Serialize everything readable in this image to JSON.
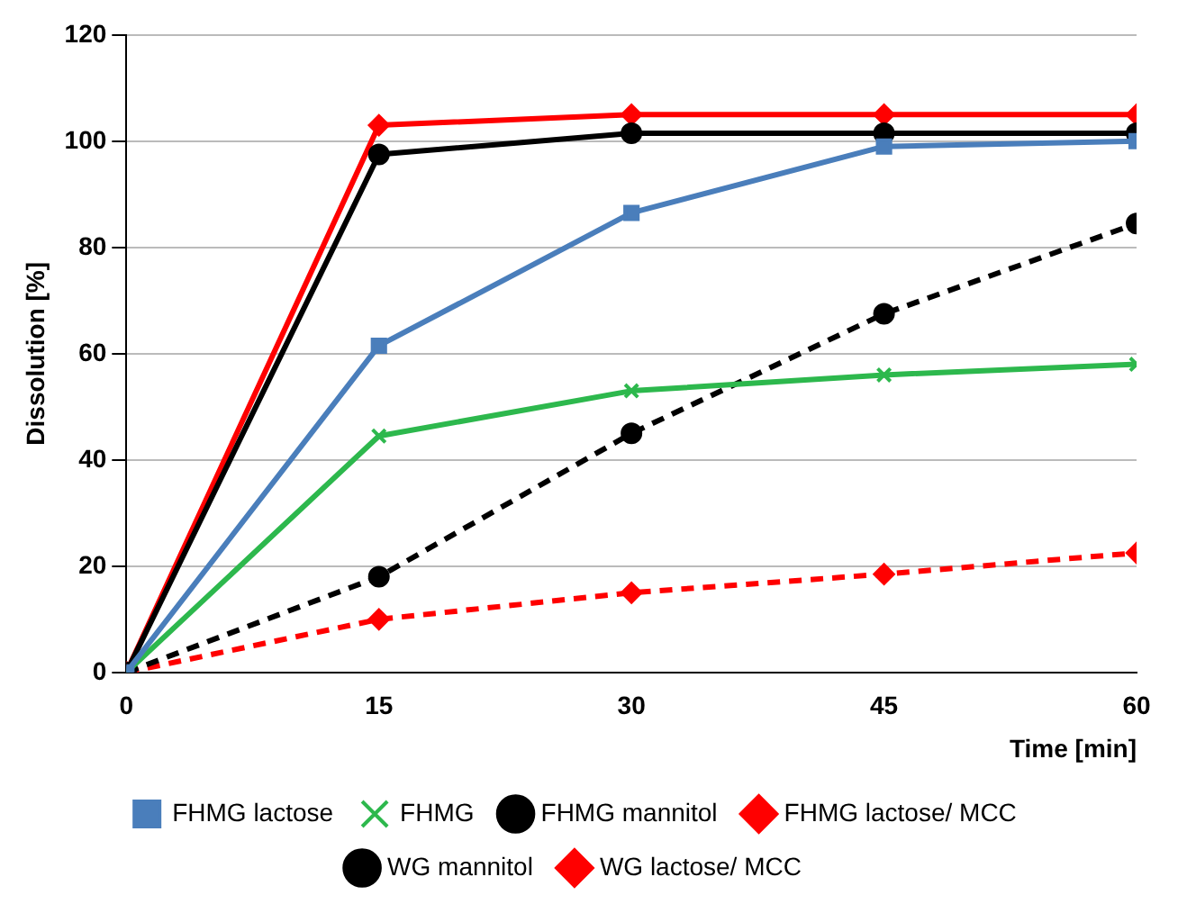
{
  "chart_data": {
    "type": "line",
    "xlabel": "Time [min]",
    "ylabel": "Dissolution [%]",
    "x": [
      0,
      15,
      30,
      45,
      60
    ],
    "xlim": [
      0,
      60
    ],
    "xticks": [
      0,
      15,
      30,
      45,
      60
    ],
    "ylim": [
      0,
      120
    ],
    "yticks": [
      0,
      20,
      40,
      60,
      80,
      100,
      120
    ],
    "grid": "y",
    "legend": "bottom",
    "series": [
      {
        "name": "FHMG lactose",
        "color": "#4a7ebb",
        "marker": "square",
        "line_style": "solid",
        "values": [
          0,
          61.5,
          86.5,
          99,
          100
        ]
      },
      {
        "name": "FHMG",
        "color": "#2db84d",
        "marker": "cross",
        "line_style": "solid",
        "values": [
          0,
          44.5,
          53,
          56,
          58
        ]
      },
      {
        "name": "FHMG mannitol",
        "color": "#000000",
        "marker": "circle",
        "line_style": "solid",
        "values": [
          0,
          97.5,
          101.5,
          101.5,
          101.5
        ]
      },
      {
        "name": "FHMG lactose/ MCC",
        "color": "#ff0000",
        "marker": "diamond",
        "line_style": "solid",
        "values": [
          0,
          103,
          105,
          105,
          105
        ]
      },
      {
        "name": "WG mannitol",
        "color": "#000000",
        "marker": "circle",
        "line_style": "dashed",
        "values": [
          0,
          18,
          45,
          67.5,
          84.5
        ]
      },
      {
        "name": "WG lactose/ MCC",
        "color": "#ff0000",
        "marker": "diamond",
        "line_style": "dashed",
        "values": [
          0,
          10,
          15,
          18.5,
          22.5
        ]
      }
    ]
  }
}
